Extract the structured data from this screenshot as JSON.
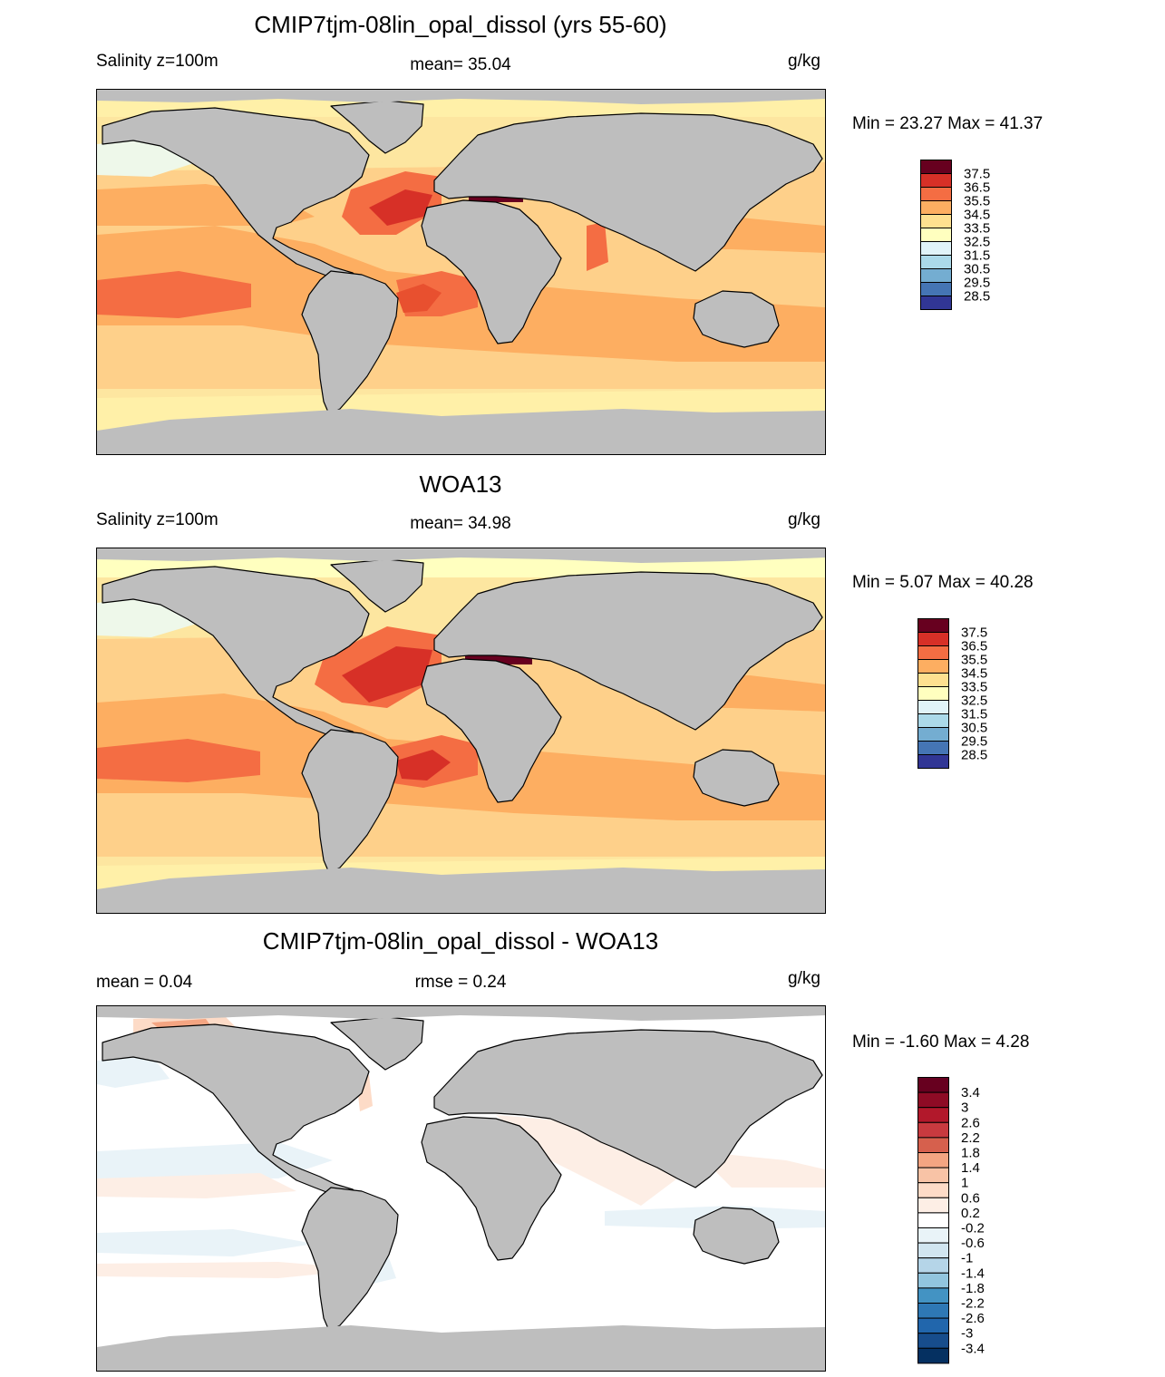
{
  "panels": [
    {
      "title": "CMIP7tjm-08lin_opal_dissol (yrs 55-60)",
      "left_label": "Salinity z=100m",
      "center_label": "mean=  35.04",
      "units": "g/kg",
      "minmax": "Min =  23.27 Max =  41.37",
      "theme": "salinity",
      "colorbar_labels": [
        "37.5",
        "36.5",
        "35.5",
        "34.5",
        "33.5",
        "32.5",
        "31.5",
        "30.5",
        "29.5",
        "28.5"
      ]
    },
    {
      "title": "WOA13",
      "left_label": "Salinity z=100m",
      "center_label": "mean=  34.98",
      "units": "g/kg",
      "minmax": "Min =   5.07 Max =  40.28",
      "theme": "salinity",
      "colorbar_labels": [
        "37.5",
        "36.5",
        "35.5",
        "34.5",
        "33.5",
        "32.5",
        "31.5",
        "30.5",
        "29.5",
        "28.5"
      ]
    },
    {
      "title": "CMIP7tjm-08lin_opal_dissol - WOA13",
      "left_label": "mean =   0.04",
      "center_label": "rmse =   0.24",
      "units": "g/kg",
      "minmax": "Min =  -1.60 Max =   4.28",
      "theme": "difference",
      "colorbar_labels": [
        "3.4",
        "3",
        "2.6",
        "2.2",
        "1.8",
        "1.4",
        "1",
        "0.6",
        "0.2",
        "-0.2",
        "-0.6",
        "-1",
        "-1.4",
        "-1.8",
        "-2.2",
        "-2.6",
        "-3",
        "-3.4"
      ]
    }
  ],
  "colors": {
    "land": "#bebebe",
    "salinity_scale": [
      "#67001f",
      "#a50f15",
      "#d73027",
      "#e8502f",
      "#f46d43",
      "#f98e52",
      "#fdae61",
      "#fdc877",
      "#fee090",
      "#fff0a8",
      "#ffffbf",
      "#eef8ea",
      "#e0f3f8",
      "#c6e7f0",
      "#abd9e9",
      "#8fc3dd",
      "#74add1",
      "#5b8fc4",
      "#4575b4",
      "#35469a",
      "#313695"
    ],
    "difference_scale": [
      "#67001f",
      "#8e0b25",
      "#b2182b",
      "#c83a3f",
      "#d6604d",
      "#e58367",
      "#f4a582",
      "#f8c3a6",
      "#fddbc7",
      "#fdeee5",
      "#ffffff",
      "#e9f3f8",
      "#d1e5f0",
      "#b5d5e8",
      "#92c5de",
      "#6aa9cf",
      "#4393c3",
      "#2e78b5",
      "#2166ac",
      "#174d8c",
      "#053061"
    ]
  }
}
